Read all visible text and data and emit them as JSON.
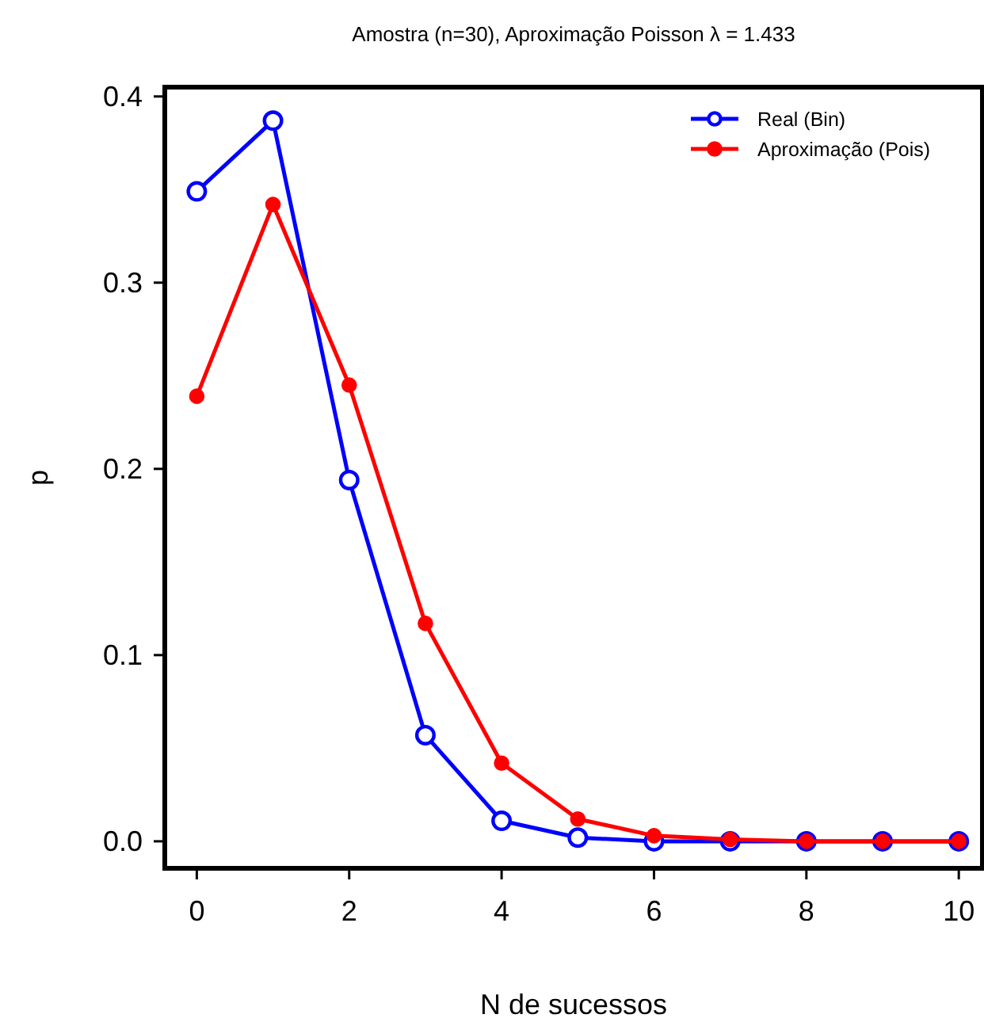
{
  "chart_data": {
    "type": "line",
    "title": "Amostra (n=30), Aproximação Poisson λ = 1.433",
    "xlabel": "N de sucessos",
    "ylabel": "p",
    "x": [
      0,
      1,
      2,
      3,
      4,
      5,
      6,
      7,
      8,
      9,
      10
    ],
    "series": [
      {
        "name": "Real (Bin)",
        "color": "#0000ff",
        "marker": "circle-open",
        "values": [
          0.349,
          0.387,
          0.194,
          0.057,
          0.011,
          0.002,
          0,
          0,
          0,
          0,
          0
        ]
      },
      {
        "name": "Aproximação (Pois)",
        "color": "#ff0000",
        "marker": "circle",
        "values": [
          0.239,
          0.342,
          0.245,
          0.117,
          0.042,
          0.012,
          0.003,
          0.001,
          0,
          0,
          0
        ]
      }
    ],
    "xlim": [
      -0.42,
      10.31
    ],
    "ylim": [
      -0.0145,
      0.405
    ],
    "xticks": [
      0,
      2,
      4,
      6,
      8,
      10
    ],
    "yticks": [
      {
        "value": 0,
        "label": "0.0"
      },
      {
        "value": 0.1,
        "label": "0.1"
      },
      {
        "value": 0.2,
        "label": "0.2"
      },
      {
        "value": 0.3,
        "label": "0.3"
      },
      {
        "value": 0.4,
        "label": "0.4"
      }
    ],
    "legend": "top right",
    "grid": false
  }
}
